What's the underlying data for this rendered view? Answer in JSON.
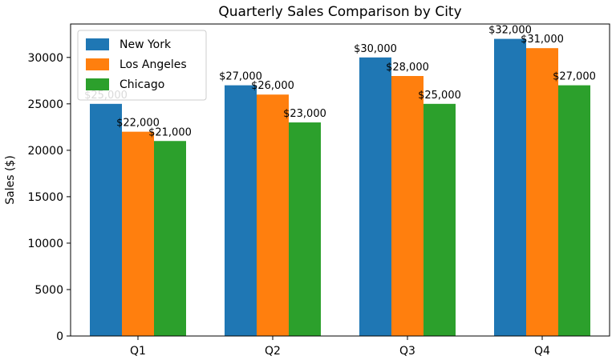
{
  "chart_data": {
    "type": "bar",
    "title": "Quarterly Sales Comparison by City",
    "xlabel": "",
    "ylabel": "Sales ($)",
    "categories": [
      "Q1",
      "Q2",
      "Q3",
      "Q4"
    ],
    "series": [
      {
        "name": "New York",
        "color": "#1f77b4",
        "values": [
          25000,
          27000,
          30000,
          32000
        ],
        "labels": [
          "$25,000",
          "$27,000",
          "$30,000",
          "$32,000"
        ]
      },
      {
        "name": "Los Angeles",
        "color": "#ff7f0e",
        "values": [
          22000,
          26000,
          28000,
          31000
        ],
        "labels": [
          "$22,000",
          "$26,000",
          "$28,000",
          "$31,000"
        ]
      },
      {
        "name": "Chicago",
        "color": "#2ca02c",
        "values": [
          21000,
          23000,
          25000,
          27000
        ],
        "labels": [
          "$21,000",
          "$23,000",
          "$25,000",
          "$27,000"
        ]
      }
    ],
    "ylim": [
      0,
      33600
    ],
    "yticks": [
      0,
      5000,
      10000,
      15000,
      20000,
      25000,
      30000
    ],
    "ytick_labels": [
      "0",
      "5000",
      "10000",
      "15000",
      "20000",
      "25000",
      "30000"
    ],
    "grid": false,
    "legend": "top-left"
  }
}
